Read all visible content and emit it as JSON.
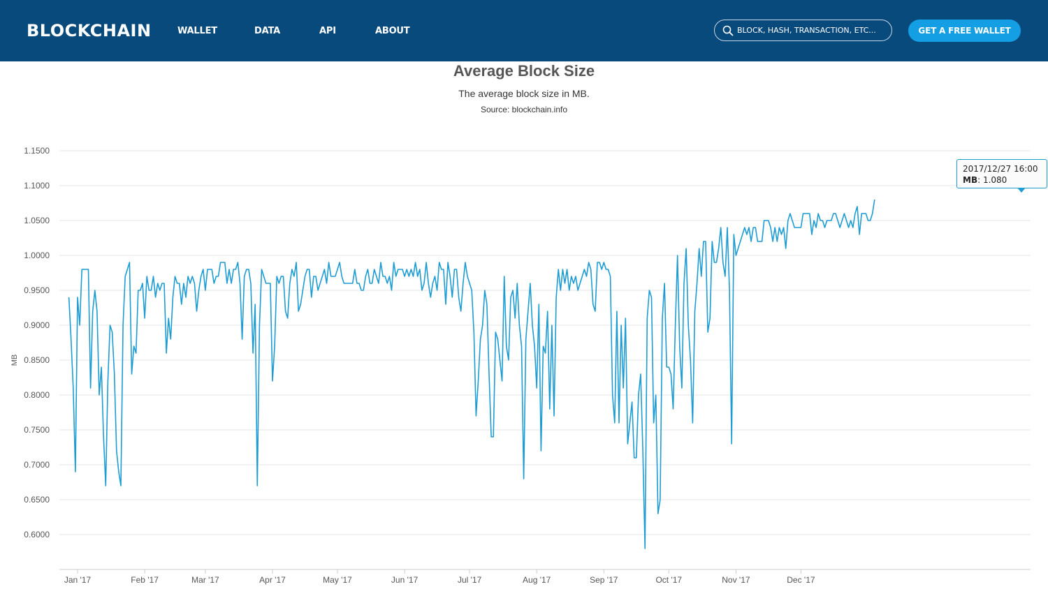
{
  "header": {
    "brand": "BLOCKCHAIN",
    "nav": [
      "WALLET",
      "DATA",
      "API",
      "ABOUT"
    ],
    "search_placeholder": "BLOCK, HASH, TRANSACTION, ETC...",
    "cta_label": "GET A FREE WALLET",
    "colors": {
      "bar": "#094a7d",
      "cta": "#149fe4"
    },
    "icons": [
      "search-icon"
    ]
  },
  "tooltip": {
    "date": "2017/12/27 16:00",
    "series": "MB",
    "value": "1.080"
  },
  "chart_data": {
    "type": "line",
    "title": "Average Block Size",
    "subtitle": "The average block size in MB.",
    "source": "Source: blockchain.info",
    "xlabel": "",
    "ylabel": "MB",
    "ylim": [
      0.58,
      1.16
    ],
    "yticks": [
      "0.6000",
      "0.6500",
      "0.7000",
      "0.7500",
      "0.8000",
      "0.8500",
      "0.9000",
      "0.9500",
      "1.0000",
      "1.0500",
      "1.1000",
      "1.1500"
    ],
    "xticks": [
      "Jan '17",
      "Feb '17",
      "Mar '17",
      "Apr '17",
      "May '17",
      "Jun '17",
      "Jul '17",
      "Aug '17",
      "Sep '17",
      "Oct '17",
      "Nov '17",
      "Dec '17"
    ],
    "grid": true,
    "legend": "none",
    "line_color": "#1d9cd4",
    "x_start": "2016-12-28",
    "x_step_days": 1,
    "series": [
      {
        "values": [
          0.94,
          0.88,
          0.81,
          0.69,
          0.94,
          0.9,
          0.98,
          0.98,
          0.98,
          0.98,
          0.81,
          0.92,
          0.95,
          0.92,
          0.8,
          0.84,
          0.74,
          0.67,
          0.82,
          0.9,
          0.89,
          0.83,
          0.72,
          0.69,
          0.67,
          0.9,
          0.97,
          0.98,
          0.99,
          0.83,
          0.87,
          0.86,
          0.95,
          0.95,
          0.96,
          0.91,
          0.97,
          0.95,
          0.95,
          0.97,
          0.94,
          0.96,
          0.95,
          0.96,
          0.96,
          0.86,
          0.91,
          0.88,
          0.94,
          0.97,
          0.96,
          0.96,
          0.93,
          0.96,
          0.94,
          0.97,
          0.96,
          0.97,
          0.96,
          0.92,
          0.95,
          0.97,
          0.98,
          0.95,
          0.98,
          0.98,
          0.98,
          0.96,
          0.97,
          0.97,
          0.99,
          0.99,
          0.99,
          0.96,
          0.98,
          0.96,
          0.98,
          0.98,
          0.99,
          0.96,
          0.88,
          0.97,
          0.98,
          0.98,
          0.96,
          0.86,
          0.93,
          0.67,
          0.9,
          0.98,
          0.97,
          0.96,
          0.96,
          0.96,
          0.82,
          0.87,
          0.97,
          0.96,
          0.97,
          0.97,
          0.92,
          0.91,
          0.96,
          0.98,
          0.97,
          0.99,
          0.92,
          0.93,
          0.95,
          0.97,
          0.98,
          0.98,
          0.94,
          0.97,
          0.97,
          0.95,
          0.96,
          0.97,
          0.98,
          0.96,
          0.99,
          0.97,
          0.97,
          0.97,
          0.98,
          0.99,
          0.97,
          0.96,
          0.96,
          0.96,
          0.96,
          0.96,
          0.98,
          0.96,
          0.96,
          0.95,
          0.95,
          0.97,
          0.98,
          0.96,
          0.96,
          0.98,
          0.97,
          0.96,
          0.99,
          0.97,
          0.97,
          0.96,
          0.97,
          0.95,
          0.99,
          0.97,
          0.98,
          0.98,
          0.98,
          0.97,
          0.98,
          0.97,
          0.98,
          0.97,
          0.99,
          0.97,
          0.98,
          0.95,
          0.96,
          0.99,
          0.96,
          0.94,
          0.96,
          0.97,
          0.95,
          0.99,
          0.98,
          0.98,
          0.93,
          0.99,
          0.97,
          0.94,
          0.98,
          0.98,
          0.94,
          0.92,
          0.96,
          0.99,
          0.97,
          0.96,
          0.95,
          0.89,
          0.77,
          0.82,
          0.88,
          0.9,
          0.95,
          0.93,
          0.83,
          0.74,
          0.74,
          0.89,
          0.88,
          0.85,
          0.82,
          0.97,
          0.87,
          0.85,
          0.94,
          0.95,
          0.91,
          0.96,
          0.9,
          0.87,
          0.68,
          0.88,
          0.92,
          0.96,
          0.9,
          0.87,
          0.81,
          0.93,
          0.72,
          0.87,
          0.86,
          0.92,
          0.78,
          0.9,
          0.77,
          0.94,
          0.98,
          0.95,
          0.98,
          0.96,
          0.98,
          0.95,
          0.97,
          0.96,
          0.97,
          0.95,
          0.96,
          0.97,
          0.98,
          0.97,
          0.99,
          0.98,
          0.93,
          0.92,
          0.99,
          0.99,
          0.98,
          0.99,
          0.98,
          0.98,
          0.97,
          0.8,
          0.76,
          0.92,
          0.76,
          0.9,
          0.81,
          0.91,
          0.73,
          0.76,
          0.79,
          0.71,
          0.71,
          0.8,
          0.83,
          0.72,
          0.58,
          0.91,
          0.95,
          0.94,
          0.76,
          0.8,
          0.63,
          0.65,
          0.91,
          0.96,
          0.84,
          0.84,
          0.83,
          0.78,
          0.9,
          1.0,
          0.87,
          0.81,
          0.96,
          1.01,
          0.9,
          0.85,
          0.76,
          0.92,
          0.96,
          1.01,
          0.97,
          1.02,
          1.02,
          0.89,
          0.91,
          1.02,
          0.99,
          0.99,
          1.01,
          1.04,
          0.99,
          0.97,
          1.04,
          0.95,
          0.73,
          1.03,
          1.0,
          1.01,
          1.02,
          1.03,
          1.04,
          1.03,
          1.04,
          1.02,
          1.04,
          1.04,
          1.02,
          1.02,
          1.02,
          1.05,
          1.05,
          1.05,
          1.04,
          1.02,
          1.04,
          1.02,
          1.04,
          1.03,
          1.04,
          1.01,
          1.05,
          1.06,
          1.05,
          1.04,
          1.04,
          1.04,
          1.04,
          1.06,
          1.06,
          1.06,
          1.06,
          1.03,
          1.05,
          1.04,
          1.06,
          1.05,
          1.05,
          1.04,
          1.05,
          1.05,
          1.05,
          1.06,
          1.06,
          1.05,
          1.04,
          1.05,
          1.06,
          1.05,
          1.04,
          1.05,
          1.04,
          1.06,
          1.07,
          1.03,
          1.06,
          1.06,
          1.06,
          1.05,
          1.05,
          1.06,
          1.08
        ]
      }
    ]
  }
}
